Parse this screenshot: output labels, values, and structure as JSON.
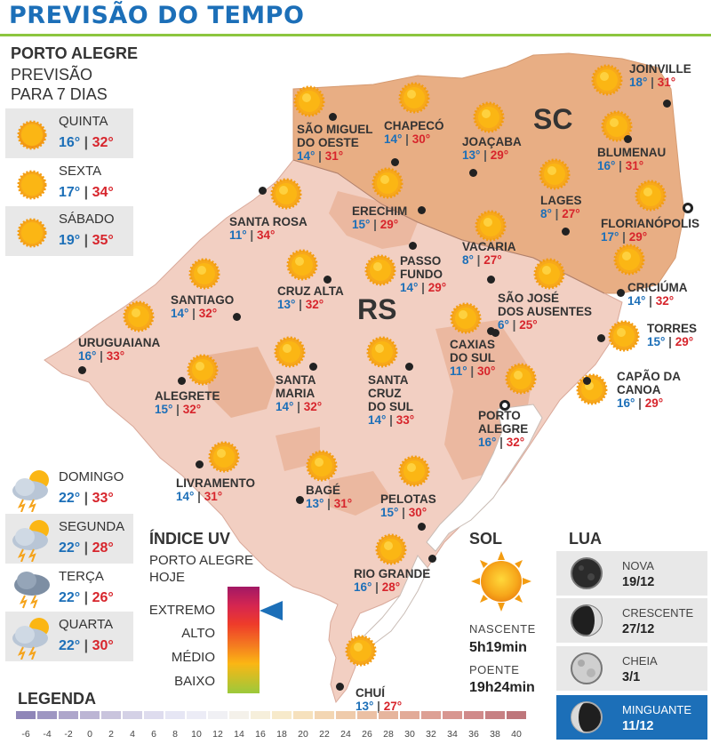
{
  "header": {
    "title": "PREVISÃO DO TEMPO"
  },
  "forecast": {
    "city": "PORTO ALEGRE",
    "sub1": "PREVISÃO",
    "sub2": "PARA 7 DIAS",
    "days": [
      {
        "name": "QUINTA",
        "min": "16°",
        "max": "32°",
        "icon": "sun-icon"
      },
      {
        "name": "SEXTA",
        "min": "17°",
        "max": "34°",
        "icon": "sun-icon"
      },
      {
        "name": "SÁBADO",
        "min": "19°",
        "max": "35°",
        "icon": "sun-icon"
      },
      {
        "name": "DOMINGO",
        "min": "22°",
        "max": "33°",
        "icon": "storm-cloud-sun-icon"
      },
      {
        "name": "SEGUNDA",
        "min": "22°",
        "max": "28°",
        "icon": "storm-cloud-sun-icon"
      },
      {
        "name": "TERÇA",
        "min": "22°",
        "max": "26°",
        "icon": "storm-cloud-icon"
      },
      {
        "name": "QUARTA",
        "min": "22°",
        "max": "30°",
        "icon": "storm-cloud-sun-icon"
      }
    ]
  },
  "states": {
    "rs": "RS",
    "sc": "SC"
  },
  "cities": [
    {
      "l1": "JOINVILLE",
      "l2": "",
      "min": "18°",
      "max": "31°"
    },
    {
      "l1": "SÃO MIGUEL",
      "l2": "DO OESTE",
      "min": "14°",
      "max": "31°"
    },
    {
      "l1": "CHAPECÓ",
      "l2": "",
      "min": "14°",
      "max": "30°"
    },
    {
      "l1": "JOAÇABA",
      "l2": "",
      "min": "13°",
      "max": "29°"
    },
    {
      "l1": "BLUMENAU",
      "l2": "",
      "min": "16°",
      "max": "31°"
    },
    {
      "l1": "LAGES",
      "l2": "",
      "min": "8°",
      "max": "27°"
    },
    {
      "l1": "FLORIANÓPOLIS",
      "l2": "",
      "min": "17°",
      "max": "29°"
    },
    {
      "l1": "SANTA ROSA",
      "l2": "",
      "min": "11°",
      "max": "34°"
    },
    {
      "l1": "ERECHIM",
      "l2": "",
      "min": "15°",
      "max": "29°"
    },
    {
      "l1": "VACARIA",
      "l2": "",
      "min": "8°",
      "max": "27°"
    },
    {
      "l1": "PASSO",
      "l2": "FUNDO",
      "min": "14°",
      "max": "29°"
    },
    {
      "l1": "SANTIAGO",
      "l2": "",
      "min": "14°",
      "max": "32°"
    },
    {
      "l1": "CRUZ ALTA",
      "l2": "",
      "min": "13°",
      "max": "32°"
    },
    {
      "l1": "SÃO JOSÉ",
      "l2": "DOS AUSENTES",
      "min": "6°",
      "max": "25°"
    },
    {
      "l1": "CRICIÚMA",
      "l2": "",
      "min": "14°",
      "max": "32°"
    },
    {
      "l1": "URUGUAIANA",
      "l2": "",
      "min": "16°",
      "max": "33°"
    },
    {
      "l1": "TORRES",
      "l2": "",
      "min": "15°",
      "max": "29°"
    },
    {
      "l1": "CAXIAS",
      "l2": "DO SUL",
      "min": "11°",
      "max": "30°"
    },
    {
      "l1": "ALEGRETE",
      "l2": "",
      "min": "15°",
      "max": "32°"
    },
    {
      "l1": "SANTA",
      "l2": "MARIA",
      "min": "14°",
      "max": "32°"
    },
    {
      "l1": "SANTA",
      "l2": "CRUZ",
      "l3": "DO SUL",
      "min": "14°",
      "max": "33°"
    },
    {
      "l1": "CAPÃO DA",
      "l2": "CANOA",
      "min": "16°",
      "max": "29°"
    },
    {
      "l1": "PORTO",
      "l2": "ALEGRE",
      "min": "16°",
      "max": "32°"
    },
    {
      "l1": "LIVRAMENTO",
      "l2": "",
      "min": "14°",
      "max": "31°"
    },
    {
      "l1": "BAGÉ",
      "l2": "",
      "min": "13°",
      "max": "31°"
    },
    {
      "l1": "PELOTAS",
      "l2": "",
      "min": "15°",
      "max": "30°"
    },
    {
      "l1": "RIO GRANDE",
      "l2": "",
      "min": "16°",
      "max": "28°"
    },
    {
      "l1": "CHUÍ",
      "l2": "",
      "min": "13°",
      "max": "27°"
    }
  ],
  "uv": {
    "title": "ÍNDICE UV",
    "sub1": "PORTO ALEGRE",
    "sub2": "HOJE",
    "levels": [
      "EXTREMO",
      "ALTO",
      "MÉDIO",
      "BAIXO"
    ],
    "current": "EXTREMO"
  },
  "sun": {
    "title": "SOL",
    "rise_label": "NASCENTE",
    "rise": "5h19min",
    "set_label": "POENTE",
    "set": "19h24min"
  },
  "moon": {
    "title": "LUA",
    "phases": [
      {
        "name": "NOVA",
        "date": "19/12",
        "icon": "new-moon-icon"
      },
      {
        "name": "CRESCENTE",
        "date": "27/12",
        "icon": "first-quarter-moon-icon"
      },
      {
        "name": "CHEIA",
        "date": "3/1",
        "icon": "full-moon-icon"
      },
      {
        "name": "MINGUANTE",
        "date": "11/12",
        "icon": "last-quarter-moon-icon",
        "current": true
      }
    ]
  },
  "legend": {
    "title": "LEGENDA",
    "ticks": [
      "-6",
      "-4",
      "-2",
      "0",
      "2",
      "4",
      "6",
      "8",
      "10",
      "12",
      "14",
      "16",
      "18",
      "20",
      "22",
      "24",
      "26",
      "28",
      "30",
      "32",
      "34",
      "36",
      "38",
      "40"
    ],
    "colors": [
      "#8f86b8",
      "#9e96c2",
      "#aea6cb",
      "#bcb5d4",
      "#c9c4dd",
      "#d4d1e6",
      "#dedcee",
      "#e6e6f4",
      "#ececf6",
      "#f0f0f4",
      "#f4f1ea",
      "#f6efdb",
      "#f7eacb",
      "#f6e1bd",
      "#f3d6b3",
      "#efcbab",
      "#ebc0a4",
      "#e6b59d",
      "#e2ab98",
      "#dda094",
      "#d89690",
      "#d08a8a",
      "#c78083",
      "#be767b"
    ]
  }
}
